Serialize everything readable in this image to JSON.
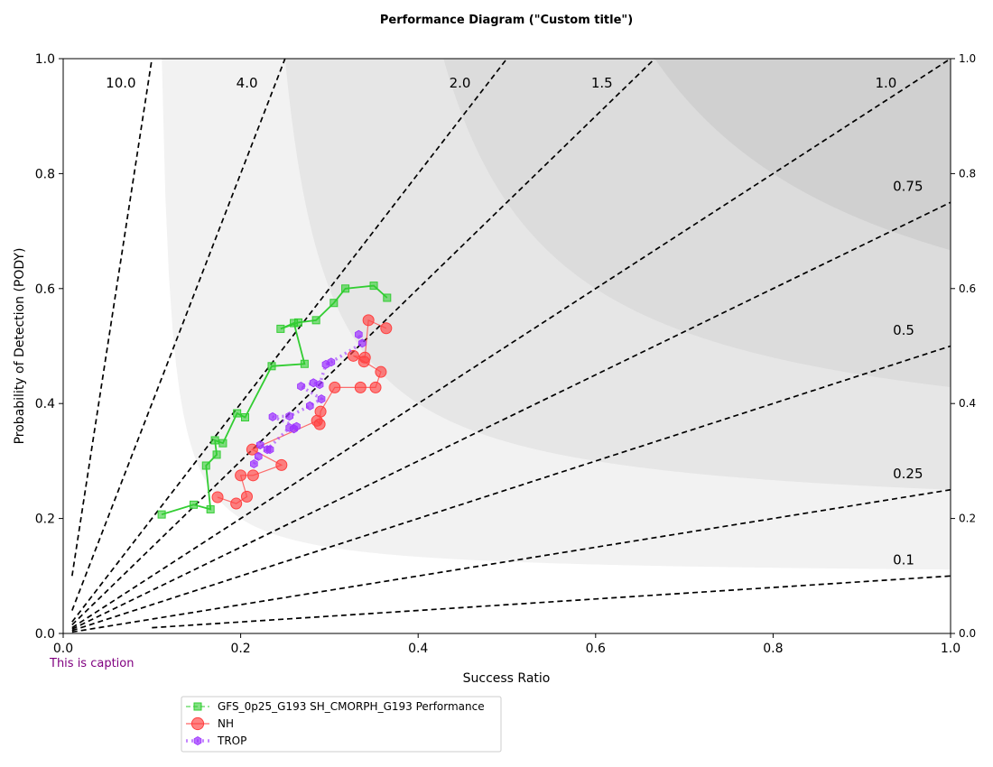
{
  "chart_data": {
    "type": "scatter",
    "title": "Performance Diagram (\"Custom title\")",
    "xlabel": "Success Ratio",
    "ylabel": "Probability of Detection (PODY)",
    "caption": "This is caption",
    "xlim": [
      0.0,
      1.0
    ],
    "ylim": [
      0.0,
      1.0
    ],
    "x_ticks": [
      "0.0",
      "0.2",
      "0.4",
      "0.6",
      "0.8",
      "1.0"
    ],
    "y_ticks": [
      "0.0",
      "0.2",
      "0.4",
      "0.6",
      "0.8",
      "1.0"
    ],
    "right_y_ticks": [
      "0.0",
      "0.2",
      "0.4",
      "0.6",
      "0.8",
      "1.0"
    ],
    "csi_fill_colors": [
      "#ffffff",
      "#f2f2f2",
      "#e6e6e6",
      "#dcdcdc",
      "#d0d0d0",
      "#c2c2c2",
      "#b5b5b5",
      "#a8a8a8",
      "#9a9a9a",
      "#8e8e8e"
    ],
    "bias_lines": [
      {
        "label": "10.0",
        "value": 10.0
      },
      {
        "label": "4.0",
        "value": 4.0
      },
      {
        "label": "2.0",
        "value": 2.0
      },
      {
        "label": "1.5",
        "value": 1.5
      },
      {
        "label": "1.0",
        "value": 1.0
      },
      {
        "label": "0.75",
        "value": 0.75
      },
      {
        "label": "0.5",
        "value": 0.5
      },
      {
        "label": "0.25",
        "value": 0.25
      },
      {
        "label": "0.1",
        "value": 0.1
      }
    ],
    "legend_position": "below-left",
    "series": [
      {
        "name": "GFS_0p25_G193 SH_CMORPH_G193 Performance",
        "color": "#32cd32",
        "marker": "square",
        "line": "solid",
        "points": [
          [
            0.111,
            0.207
          ],
          [
            0.147,
            0.224
          ],
          [
            0.166,
            0.216
          ],
          [
            0.161,
            0.292
          ],
          [
            0.173,
            0.311
          ],
          [
            0.171,
            0.336
          ],
          [
            0.18,
            0.331
          ],
          [
            0.196,
            0.383
          ],
          [
            0.205,
            0.376
          ],
          [
            0.235,
            0.465
          ],
          [
            0.272,
            0.469
          ],
          [
            0.26,
            0.54
          ],
          [
            0.245,
            0.53
          ],
          [
            0.265,
            0.541
          ],
          [
            0.285,
            0.545
          ],
          [
            0.305,
            0.575
          ],
          [
            0.318,
            0.6
          ],
          [
            0.35,
            0.605
          ],
          [
            0.365,
            0.584
          ]
        ]
      },
      {
        "name": "NH",
        "color": "#ff4040",
        "marker": "circle",
        "line": "solid",
        "points": [
          [
            0.174,
            0.237
          ],
          [
            0.195,
            0.226
          ],
          [
            0.207,
            0.238
          ],
          [
            0.2,
            0.275
          ],
          [
            0.214,
            0.275
          ],
          [
            0.246,
            0.293
          ],
          [
            0.213,
            0.32
          ],
          [
            0.286,
            0.37
          ],
          [
            0.289,
            0.364
          ],
          [
            0.29,
            0.386
          ],
          [
            0.306,
            0.428
          ],
          [
            0.335,
            0.428
          ],
          [
            0.352,
            0.428
          ],
          [
            0.358,
            0.455
          ],
          [
            0.339,
            0.473
          ],
          [
            0.327,
            0.483
          ],
          [
            0.34,
            0.48
          ],
          [
            0.344,
            0.545
          ],
          [
            0.364,
            0.531
          ]
        ]
      },
      {
        "name": "TROP",
        "color": "#9b30ff",
        "marker": "hexagon",
        "line": "dotted",
        "points": [
          [
            0.215,
            0.295
          ],
          [
            0.22,
            0.308
          ],
          [
            0.222,
            0.328
          ],
          [
            0.233,
            0.32
          ],
          [
            0.23,
            0.32
          ],
          [
            0.255,
            0.358
          ],
          [
            0.26,
            0.356
          ],
          [
            0.263,
            0.36
          ],
          [
            0.236,
            0.377
          ],
          [
            0.255,
            0.378
          ],
          [
            0.278,
            0.396
          ],
          [
            0.291,
            0.408
          ],
          [
            0.268,
            0.43
          ],
          [
            0.282,
            0.436
          ],
          [
            0.289,
            0.433
          ],
          [
            0.296,
            0.468
          ],
          [
            0.302,
            0.472
          ],
          [
            0.337,
            0.505
          ],
          [
            0.333,
            0.52
          ]
        ]
      }
    ]
  }
}
